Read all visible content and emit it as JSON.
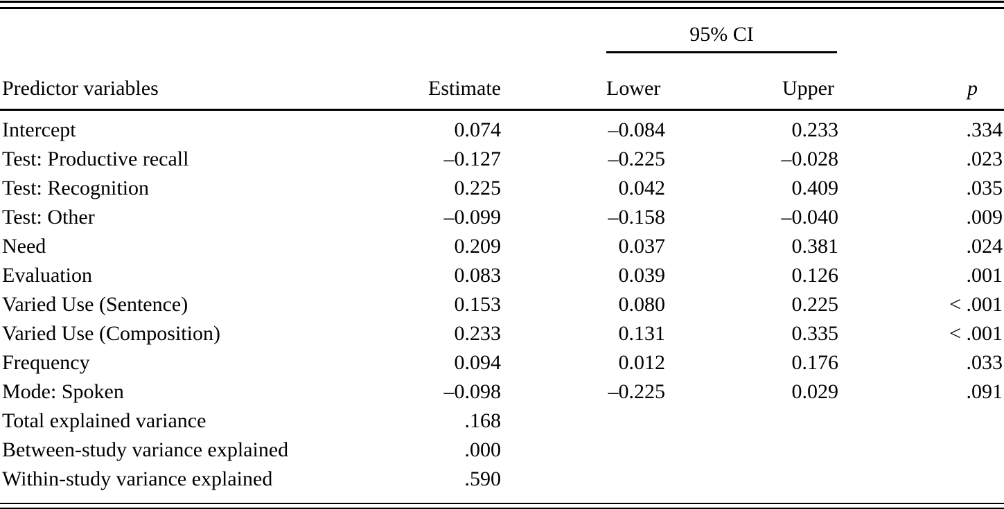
{
  "table": {
    "header": {
      "ci_spanner": "95% CI",
      "col_predictor": "Predictor variables",
      "col_estimate": "Estimate",
      "col_lower": "Lower",
      "col_upper": "Upper",
      "col_p": "p"
    },
    "rows": [
      {
        "predictor": "Intercept",
        "estimate": "0.074",
        "lower": "–0.084",
        "upper": "0.233",
        "p": ".334"
      },
      {
        "predictor": "Test: Productive recall",
        "estimate": "–0.127",
        "lower": "–0.225",
        "upper": "–0.028",
        "p": ".023"
      },
      {
        "predictor": "Test: Recognition",
        "estimate": "0.225",
        "lower": "0.042",
        "upper": "0.409",
        "p": ".035"
      },
      {
        "predictor": "Test: Other",
        "estimate": "–0.099",
        "lower": "–0.158",
        "upper": "–0.040",
        "p": ".009"
      },
      {
        "predictor": "Need",
        "estimate": "0.209",
        "lower": "0.037",
        "upper": "0.381",
        "p": ".024"
      },
      {
        "predictor": "Evaluation",
        "estimate": "0.083",
        "lower": "0.039",
        "upper": "0.126",
        "p": ".001"
      },
      {
        "predictor": "Varied Use (Sentence)",
        "estimate": "0.153",
        "lower": "0.080",
        "upper": "0.225",
        "p": "< .001"
      },
      {
        "predictor": "Varied Use (Composition)",
        "estimate": "0.233",
        "lower": "0.131",
        "upper": "0.335",
        "p": "< .001"
      },
      {
        "predictor": "Frequency",
        "estimate": "0.094",
        "lower": "0.012",
        "upper": "0.176",
        "p": ".033"
      },
      {
        "predictor": "Mode: Spoken",
        "estimate": "–0.098",
        "lower": "–0.225",
        "upper": "0.029",
        "p": ".091"
      },
      {
        "predictor": "Total explained variance",
        "estimate": ".168",
        "lower": "",
        "upper": "",
        "p": ""
      },
      {
        "predictor": "Between-study variance explained",
        "estimate": ".000",
        "lower": "",
        "upper": "",
        "p": ""
      },
      {
        "predictor": "Within-study variance explained",
        "estimate": ".590",
        "lower": "",
        "upper": "",
        "p": ""
      }
    ]
  }
}
